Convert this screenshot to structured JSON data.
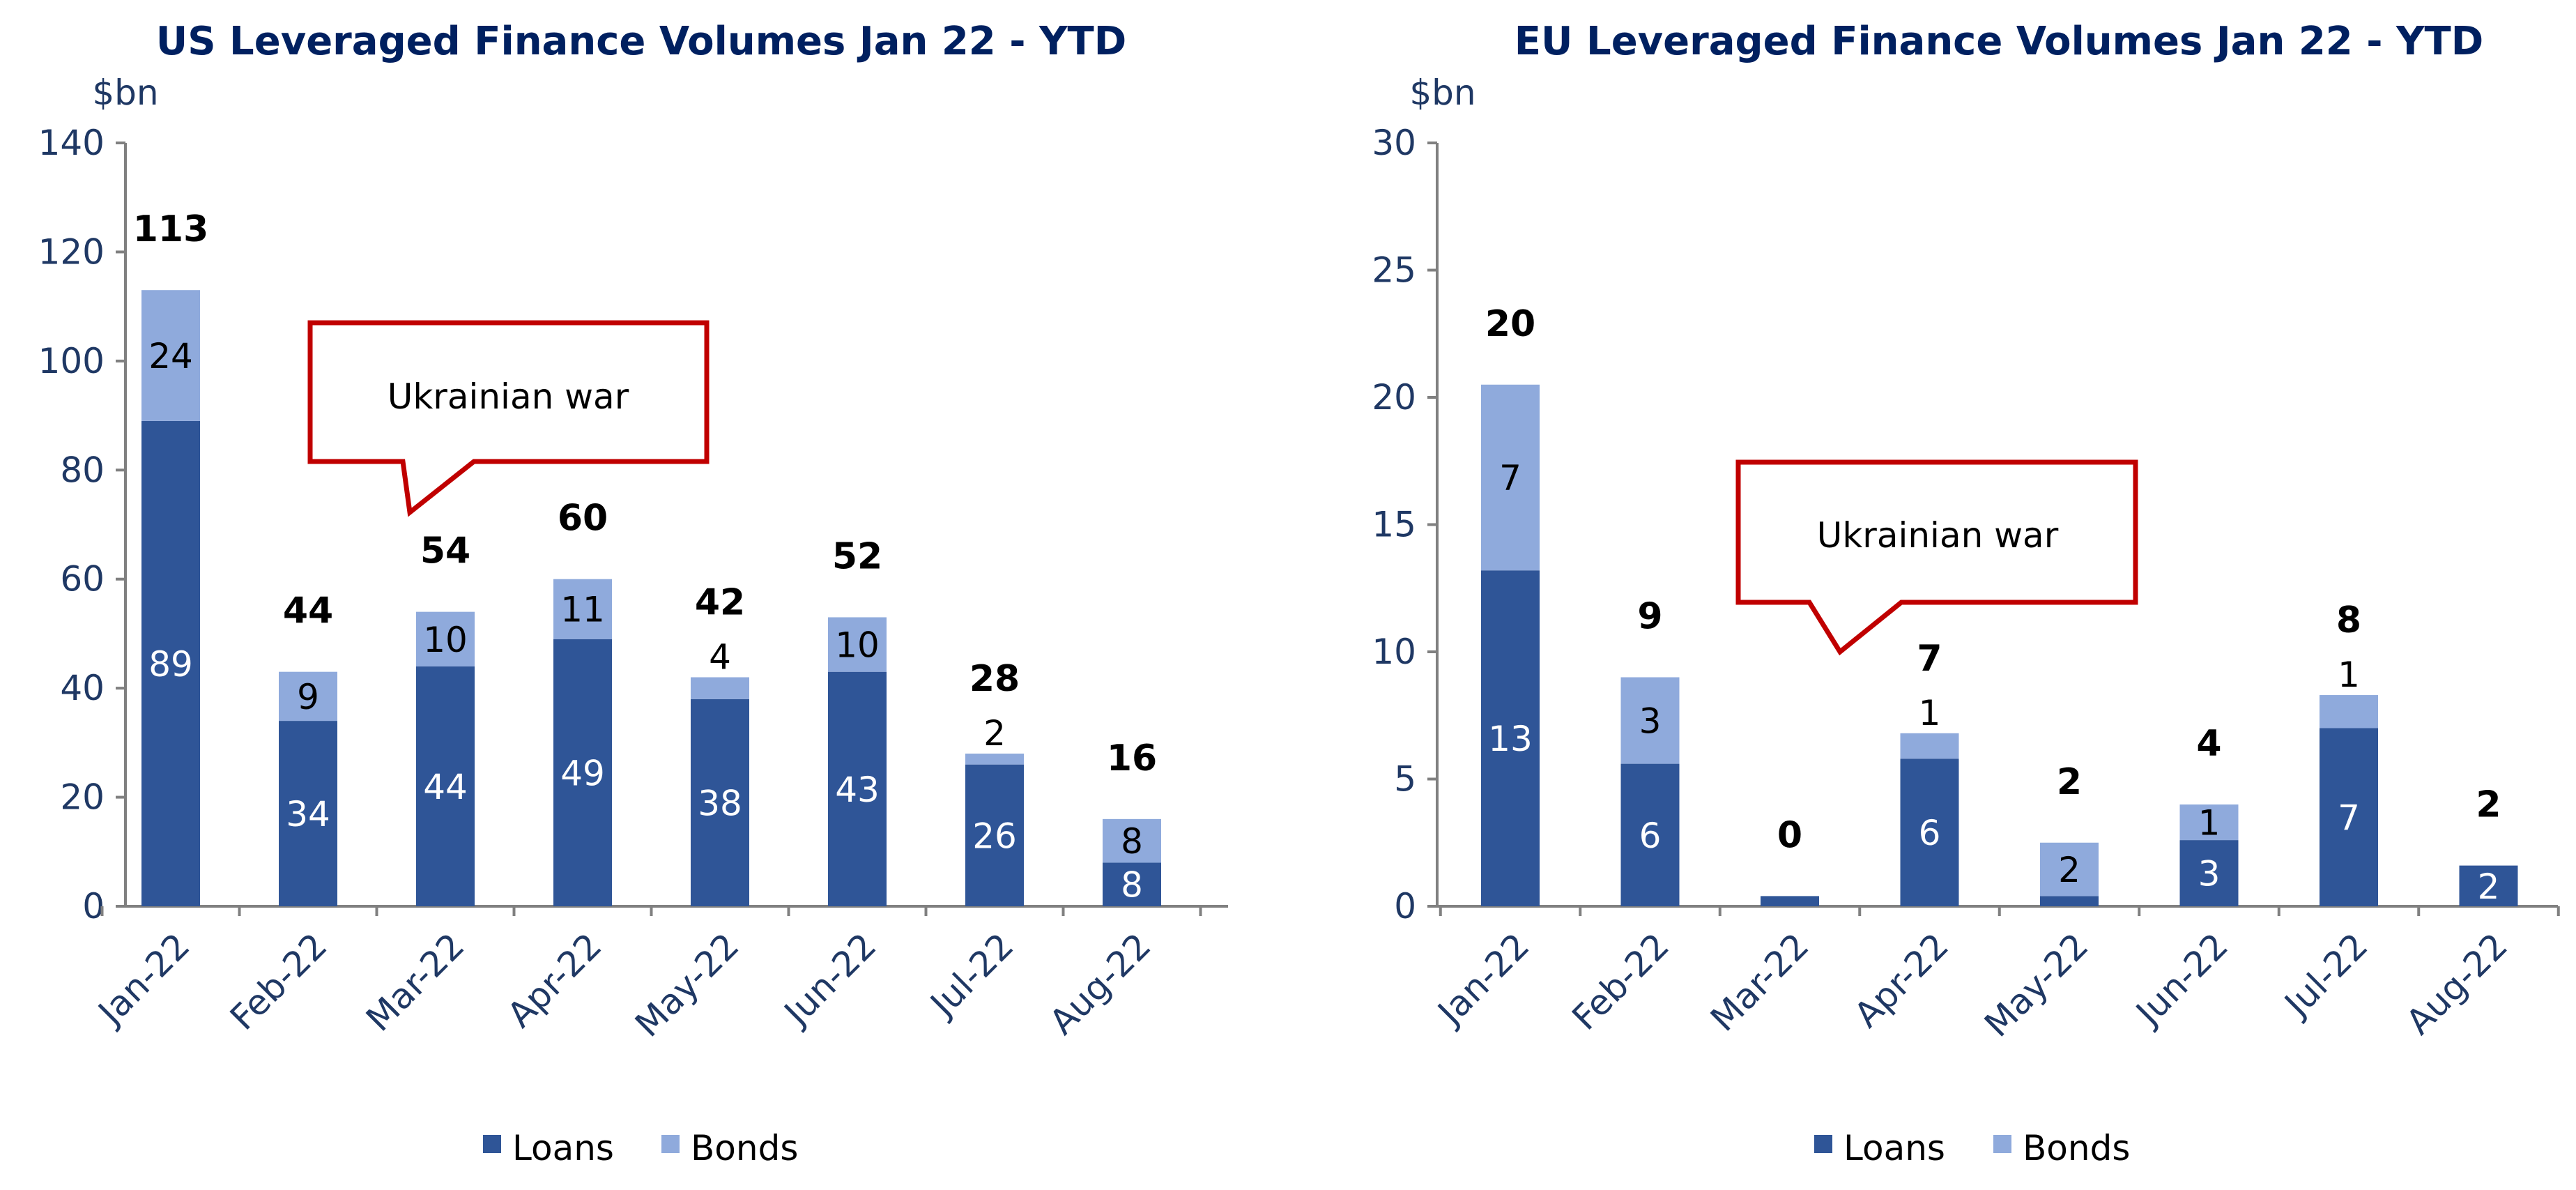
{
  "chart_data": [
    {
      "type": "bar",
      "stacked": true,
      "title": "US Leveraged Finance Volumes Jan 22 - YTD",
      "ylabel": "$bn",
      "ylim": [
        0,
        140
      ],
      "yticks": [
        "0",
        "20",
        "40",
        "60",
        "80",
        "100",
        "120",
        "140"
      ],
      "categories": [
        "Jan-22",
        "Feb-22",
        "Mar-22",
        "Apr-22",
        "May-22",
        "Jun-22",
        "Jul-22",
        "Aug-22"
      ],
      "series": [
        {
          "name": "Loans",
          "values": [
            89,
            34,
            44,
            49,
            38,
            43,
            26,
            8
          ],
          "labels": [
            "89",
            "34",
            "44",
            "49",
            "38",
            "43",
            "26",
            "8"
          ]
        },
        {
          "name": "Bonds",
          "values": [
            24,
            9,
            10,
            11,
            4,
            10,
            2,
            8
          ],
          "labels": [
            "24",
            "9",
            "10",
            "11",
            "4",
            "10",
            "2",
            "8"
          ]
        }
      ],
      "totals": [
        "113",
        "44",
        "54",
        "60",
        "42",
        "52",
        "28",
        "16"
      ],
      "annotation": "Ukrainian war",
      "legend": [
        "Loans",
        "Bonds"
      ]
    },
    {
      "type": "bar",
      "stacked": true,
      "title": "EU Leveraged Finance Volumes Jan 22 - YTD",
      "ylabel": "$bn",
      "ylim": [
        0,
        30
      ],
      "yticks": [
        "0",
        "5",
        "10",
        "15",
        "20",
        "25",
        "30"
      ],
      "categories": [
        "Jan-22",
        "Feb-22",
        "Mar-22",
        "Apr-22",
        "May-22",
        "Jun-22",
        "Jul-22",
        "Aug-22"
      ],
      "series": [
        {
          "name": "Loans",
          "values": [
            13.2,
            5.6,
            0.4,
            5.8,
            0.4,
            2.6,
            7.0,
            1.6
          ],
          "labels": [
            "13",
            "6",
            "",
            "6",
            "",
            "3",
            "7",
            "2"
          ]
        },
        {
          "name": "Bonds",
          "values": [
            7.3,
            3.4,
            0.0,
            1.0,
            2.1,
            1.4,
            1.3,
            0.0
          ],
          "labels": [
            "7",
            "3",
            "",
            "1",
            "2",
            "1",
            "1",
            ""
          ]
        }
      ],
      "totals": [
        "20",
        "9",
        "0",
        "7",
        "2",
        "4",
        "8",
        "2"
      ],
      "annotation": "Ukrainian war",
      "legend": [
        "Loans",
        "Bonds"
      ]
    }
  ],
  "colors": {
    "loans": "#2f5597",
    "bonds": "#8faadc",
    "axis_text": "#1f3864",
    "title": "#002060",
    "callout_border": "#c00000"
  }
}
